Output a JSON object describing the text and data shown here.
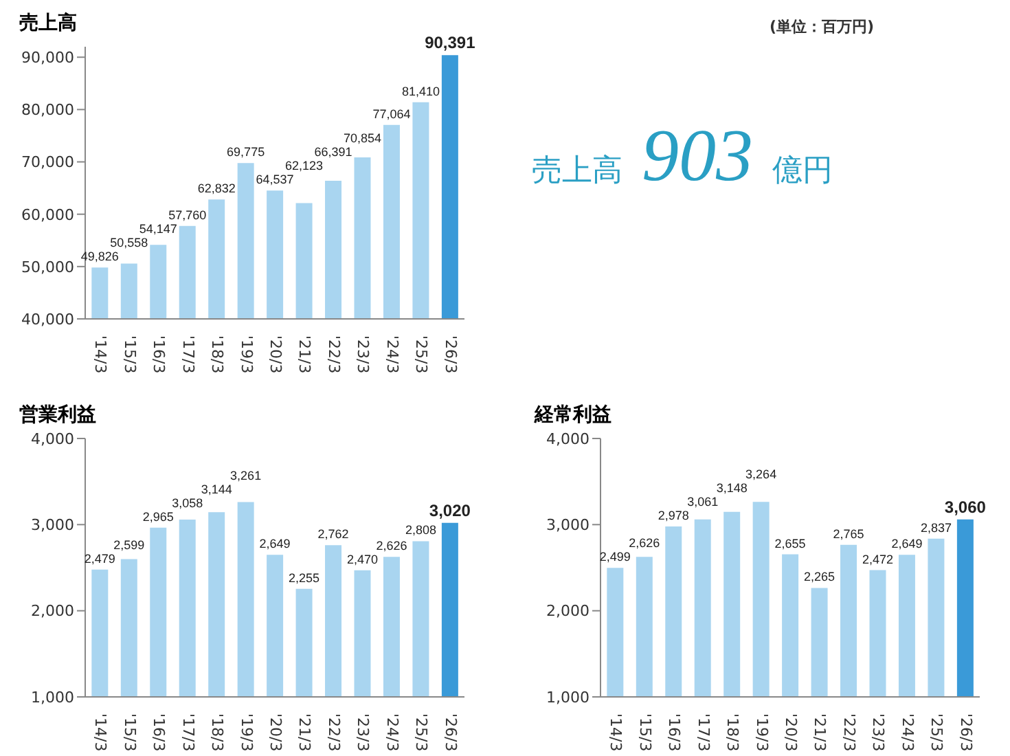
{
  "chart_data": [
    {
      "type": "bar",
      "title": "売上高",
      "annotations": [
        "(単位：百万円)"
      ],
      "categories": [
        "'14/3",
        "'15/3",
        "'16/3",
        "'17/3",
        "'18/3",
        "'19/3",
        "'20/3",
        "'21/3",
        "'22/3",
        "'23/3",
        "'24/3",
        "'25/3",
        "'26/3"
      ],
      "values": [
        49826,
        50558,
        54147,
        57760,
        62832,
        69775,
        64537,
        62123,
        66391,
        70854,
        77064,
        81410,
        90391
      ],
      "value_labels": [
        "49,826",
        "50,558",
        "54,147",
        "57,760",
        "62,832",
        "69,775",
        "64,537",
        "62,123",
        "66,391",
        "70,854",
        "77,064",
        "81,410",
        "90,391"
      ],
      "colors": [
        "#a9d5f0",
        "#a9d5f0",
        "#a9d5f0",
        "#a9d5f0",
        "#a9d5f0",
        "#a9d5f0",
        "#a9d5f0",
        "#a9d5f0",
        "#a9d5f0",
        "#a9d5f0",
        "#a9d5f0",
        "#a9d5f0",
        "#3a9ad8"
      ],
      "ylim": [
        40000,
        92000
      ],
      "yticks": [
        {
          "value": 40000,
          "label": "40,000"
        },
        {
          "value": 50000,
          "label": "50,000"
        },
        {
          "value": 60000,
          "label": "60,000"
        },
        {
          "value": 70000,
          "label": "70,000"
        },
        {
          "value": 80000,
          "label": "80,000"
        },
        {
          "value": 90000,
          "label": "90,000"
        }
      ],
      "grid": false
    },
    {
      "type": "other",
      "annotations": [
        "売上高",
        "903",
        "億円"
      ]
    },
    {
      "type": "bar",
      "title": "営業利益",
      "categories": [
        "'14/3",
        "'15/3",
        "'16/3",
        "'17/3",
        "'18/3",
        "'19/3",
        "'20/3",
        "'21/3",
        "'22/3",
        "'23/3",
        "'24/3",
        "'25/3",
        "'26/3"
      ],
      "values": [
        2479,
        2599,
        2965,
        3058,
        3144,
        3261,
        2649,
        2255,
        2762,
        2470,
        2626,
        2808,
        3020
      ],
      "value_labels": [
        "2,479",
        "2,599",
        "2,965",
        "3,058",
        "3,144",
        "3,261",
        "2,649",
        "2,255",
        "2,762",
        "2,470",
        "2,626",
        "2,808",
        "3,020"
      ],
      "colors": [
        "#a9d5f0",
        "#a9d5f0",
        "#a9d5f0",
        "#a9d5f0",
        "#a9d5f0",
        "#a9d5f0",
        "#a9d5f0",
        "#a9d5f0",
        "#a9d5f0",
        "#a9d5f0",
        "#a9d5f0",
        "#a9d5f0",
        "#3a9ad8"
      ],
      "ylim": [
        1000,
        4000
      ],
      "yticks": [
        {
          "value": 1000,
          "label": "1,000"
        },
        {
          "value": 2000,
          "label": "2,000"
        },
        {
          "value": 3000,
          "label": "3,000"
        },
        {
          "value": 4000,
          "label": "4,000"
        }
      ],
      "grid": false
    },
    {
      "type": "bar",
      "title": "経常利益",
      "categories": [
        "'14/3",
        "'15/3",
        "'16/3",
        "'17/3",
        "'18/3",
        "'19/3",
        "'20/3",
        "'21/3",
        "'22/3",
        "'23/3",
        "'24/3",
        "'25/3",
        "'26/3"
      ],
      "values": [
        2499,
        2626,
        2978,
        3061,
        3148,
        3264,
        2655,
        2265,
        2765,
        2472,
        2649,
        2837,
        3060
      ],
      "value_labels": [
        "2,499",
        "2,626",
        "2,978",
        "3,061",
        "3,148",
        "3,264",
        "2,655",
        "2,265",
        "2,765",
        "2,472",
        "2,649",
        "2,837",
        "3,060"
      ],
      "colors": [
        "#a9d5f0",
        "#a9d5f0",
        "#a9d5f0",
        "#a9d5f0",
        "#a9d5f0",
        "#a9d5f0",
        "#a9d5f0",
        "#a9d5f0",
        "#a9d5f0",
        "#a9d5f0",
        "#a9d5f0",
        "#a9d5f0",
        "#3a9ad8"
      ],
      "ylim": [
        1000,
        4000
      ],
      "yticks": [
        {
          "value": 1000,
          "label": "1,000"
        },
        {
          "value": 2000,
          "label": "2,000"
        },
        {
          "value": 3000,
          "label": "3,000"
        },
        {
          "value": 4000,
          "label": "4,000"
        }
      ],
      "grid": false
    }
  ]
}
